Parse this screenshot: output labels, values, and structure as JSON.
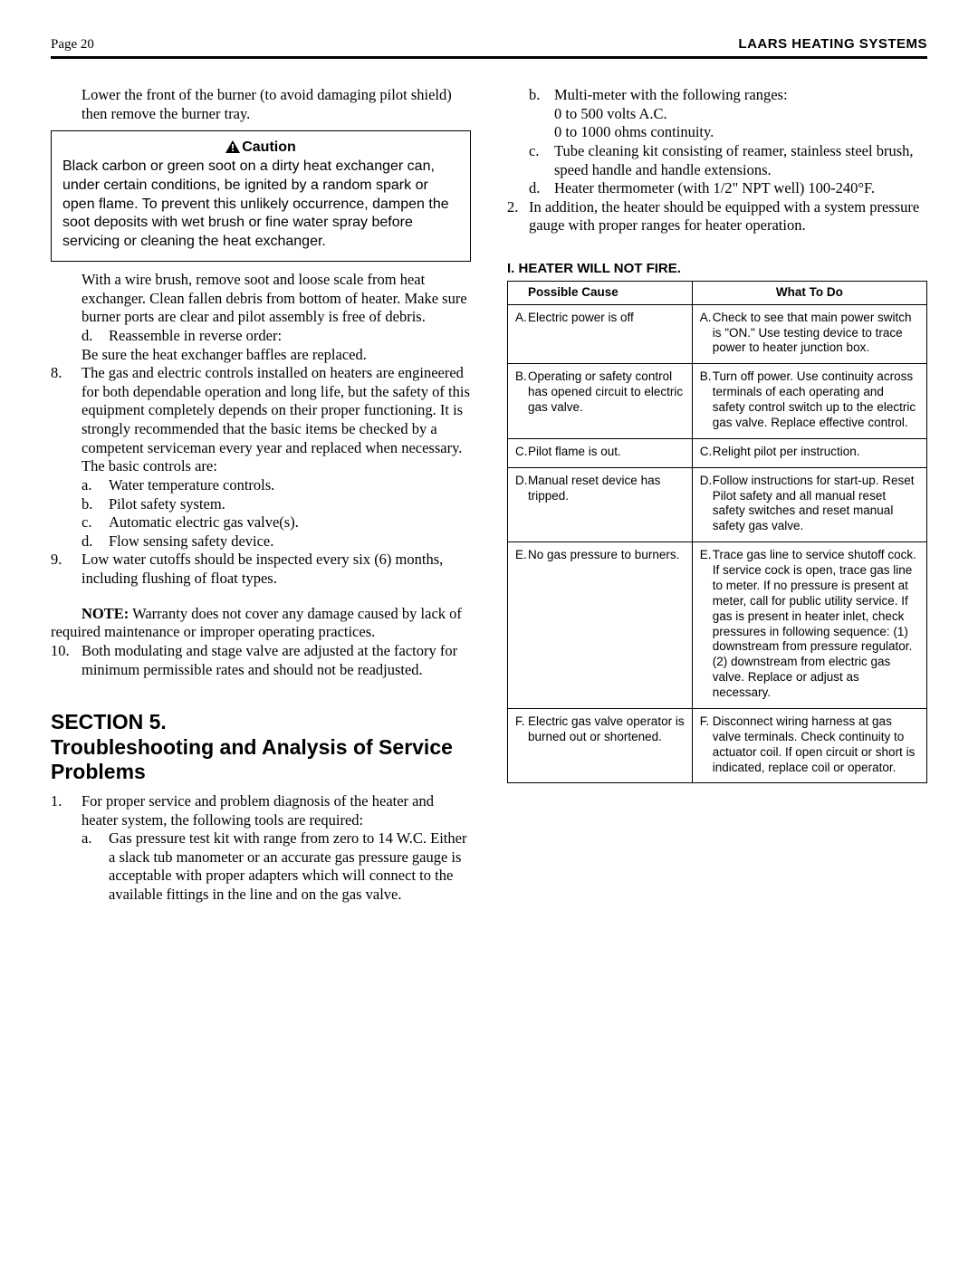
{
  "header": {
    "page_label": "Page 20",
    "brand": "LAARS HEATING SYSTEMS"
  },
  "left": {
    "intro": "Lower the front of the burner (to avoid damaging pilot shield) then remove the burner tray.",
    "caution": {
      "title": "Caution",
      "body": "Black carbon or green soot on a dirty heat exchanger can, under certain conditions, be ignited by a random spark or open flame. To prevent this unlikely occurrence, dampen the soot deposits with wet brush or fine water spray before servicing or cleaning the heat exchanger."
    },
    "after_caution": "With a wire brush, remove soot and loose scale from heat exchanger. Clean fallen debris from bottom of heater. Make sure burner ports are clear and pilot assembly is free of debris.",
    "sub_d_label": "d.",
    "sub_d_text": "Reassemble in reverse order:",
    "after_d": "Be sure the heat exchanger baffles are replaced.",
    "n8_label": "8.",
    "n8_text": "The gas and electric controls installed on heaters are engineered for both dependable operation and long life, but the safety of this equipment completely depends on their proper functioning. It is strongly recommended that the basic items be checked by a competent serviceman every year and replaced when necessary. The basic controls are:",
    "n8_a_label": "a.",
    "n8_a_text": "Water temperature controls.",
    "n8_b_label": "b.",
    "n8_b_text": "Pilot safety system.",
    "n8_c_label": "c.",
    "n8_c_text": "Automatic electric gas valve(s).",
    "n8_d_label": "d.",
    "n8_d_text": "Flow sensing safety device.",
    "n9_label": "9.",
    "n9_text": "Low water cutoffs should be inspected every six (6) months, including flushing of float types.",
    "note_label": "NOTE:",
    "note_text": " Warranty does not cover any damage caused by lack of required maintenance or improper operating practices.",
    "n10_label": "10.",
    "n10_text": "Both modulating and stage valve are adjusted at the factory for minimum permissible rates and should not be readjusted.",
    "section_title_1": "SECTION 5.",
    "section_title_2": "Troubleshooting and Analysis of Service Problems",
    "sec_n1_label": "1.",
    "sec_n1_text": "For proper service and problem diagnosis of the heater and heater system, the following tools are required:",
    "sec_a_label": "a.",
    "sec_a_text": "Gas pressure test kit with range from zero to 14 W.C. Either a slack tub manometer or an accurate gas pressure gauge is acceptable with proper adapters which will connect to the available fittings in the line and on the gas valve."
  },
  "right": {
    "b_label": "b.",
    "b_text": "Multi-meter with the following ranges:",
    "b_line2": "0 to 500 volts A.C.",
    "b_line3": "0 to 1000 ohms continuity.",
    "c_label": "c.",
    "c_text": "Tube cleaning kit consisting of reamer, stainless steel brush, speed handle and handle extensions.",
    "d_label": "d.",
    "d_text": "Heater thermometer (with 1/2\" NPT well) 100-240°F.",
    "n2_label": "2.",
    "n2_text": "In addition, the heater should be equipped with a system pressure gauge with proper ranges for heater operation.",
    "table_title": "I.  HEATER WILL NOT FIRE.",
    "table": {
      "col1": "Possible Cause",
      "col2": "What To Do",
      "rows": [
        {
          "cause_prefix": "A.",
          "cause": "Electric power is off",
          "fix_prefix": "A.",
          "fix": "Check to see that main power switch is \"ON.\" Use testing device to trace power to heater junction box."
        },
        {
          "cause_prefix": "B.",
          "cause": "Operating or safety control has opened circuit to electric gas valve.",
          "fix_prefix": "B.",
          "fix": "Turn off power. Use continuity across terminals of each operating and safety control switch up to the electric gas valve. Replace effective control."
        },
        {
          "cause_prefix": "C.",
          "cause": "Pilot flame is out.",
          "fix_prefix": "C.",
          "fix": "Relight pilot per instruction."
        },
        {
          "cause_prefix": "D.",
          "cause": "Manual reset device has tripped.",
          "fix_prefix": "D.",
          "fix": "Follow instructions for start-up. Reset Pilot safety and all manual reset safety switches and reset manual safety gas valve."
        },
        {
          "cause_prefix": "E.",
          "cause": "No gas pressure to burners.",
          "fix_prefix": "E.",
          "fix": "Trace gas line to service shutoff cock. If service cock is open, trace gas line to meter. If no pressure is present at meter, call for public utility service. If gas is present in heater inlet, check pressures in following sequence: (1) downstream from pressure regulator. (2) downstream from electric gas valve. Replace or adjust as necessary."
        },
        {
          "cause_prefix": "F.",
          "cause": "Electric gas valve operator is burned out or shortened.",
          "fix_prefix": "F.",
          "fix": "Disconnect wiring harness at gas valve terminals. Check continuity to actuator coil. If open circuit or short is indicated, replace coil or operator."
        }
      ]
    }
  }
}
